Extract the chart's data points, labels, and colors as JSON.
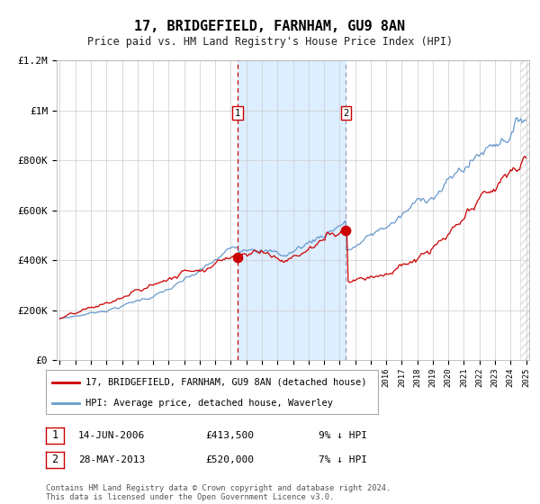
{
  "title": "17, BRIDGEFIELD, FARNHAM, GU9 8AN",
  "subtitle": "Price paid vs. HM Land Registry's House Price Index (HPI)",
  "x_start_year": 1995,
  "x_end_year": 2025,
  "y_min": 0,
  "y_max": 1200000,
  "y_ticks": [
    0,
    200000,
    400000,
    600000,
    800000,
    1000000,
    1200000
  ],
  "y_tick_labels": [
    "£0",
    "£200K",
    "£400K",
    "£600K",
    "£800K",
    "£1M",
    "£1.2M"
  ],
  "purchase1_year": 2006.45,
  "purchase1_price": 413500,
  "purchase2_year": 2013.41,
  "purchase2_price": 520000,
  "shade_color": "#ddeeff",
  "red_line_color": "#cc0000",
  "blue_line_color": "#6699cc",
  "vline1_color": "#cc0000",
  "vline2_color": "#9999bb",
  "dot_color": "#cc0000",
  "grid_color": "#cccccc",
  "background_color": "#ffffff",
  "legend_label_red": "17, BRIDGEFIELD, FARNHAM, GU9 8AN (detached house)",
  "legend_label_blue": "HPI: Average price, detached house, Waverley",
  "footnote1_label": "1",
  "footnote1_date": "14-JUN-2006",
  "footnote1_price": "£413,500",
  "footnote1_hpi": "9% ↓ HPI",
  "footnote2_label": "2",
  "footnote2_date": "28-MAY-2013",
  "footnote2_price": "£520,000",
  "footnote2_hpi": "7% ↓ HPI",
  "copyright_text": "Contains HM Land Registry data © Crown copyright and database right 2024.\nThis data is licensed under the Open Government Licence v3.0."
}
